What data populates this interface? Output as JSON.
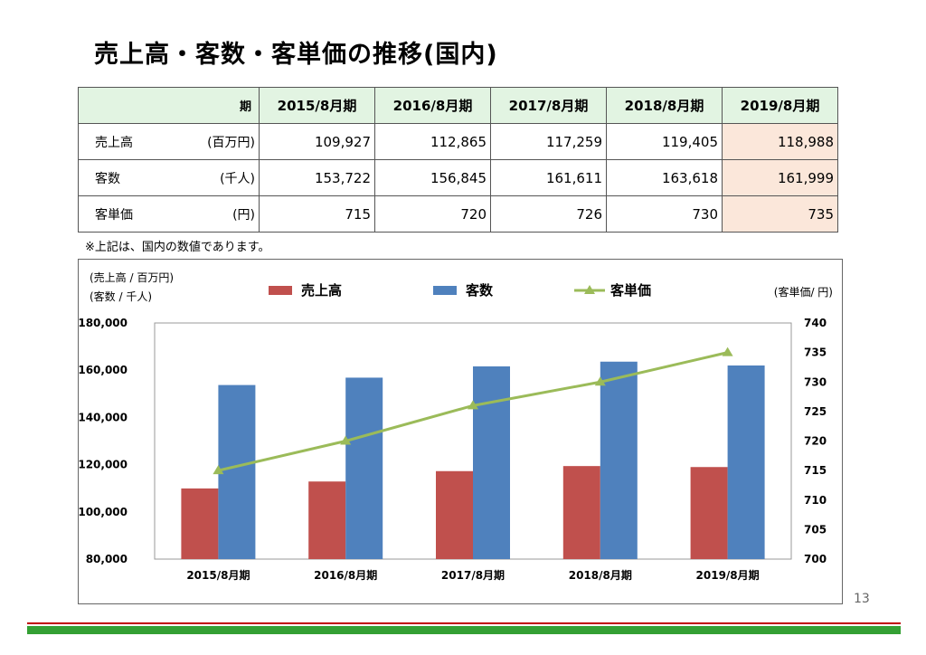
{
  "title": "売上高・客数・客単価の推移(国内)",
  "table": {
    "corner": "期",
    "columns": [
      "2015/8月期",
      "2016/8月期",
      "2017/8月期",
      "2018/8月期",
      "2019/8月期"
    ],
    "rows": [
      {
        "label": "売上高",
        "unit": "(百万円)",
        "values": [
          "109,927",
          "112,865",
          "117,259",
          "119,405",
          "118,988"
        ]
      },
      {
        "label": "客数",
        "unit": "(千人)",
        "values": [
          "153,722",
          "156,845",
          "161,611",
          "163,618",
          "161,999"
        ]
      },
      {
        "label": "客単価",
        "unit": "(円)",
        "values": [
          "715",
          "720",
          "726",
          "730",
          "735"
        ]
      }
    ]
  },
  "note": "※上記は、国内の数値であります。",
  "page_number": "13",
  "chart_data": {
    "type": "bar",
    "categories": [
      "2015/8月期",
      "2016/8月期",
      "2017/8月期",
      "2018/8月期",
      "2019/8月期"
    ],
    "series": [
      {
        "name": "売上高",
        "axis": "left",
        "type": "bar",
        "color": "#c0504d",
        "values": [
          109927,
          112865,
          117259,
          119405,
          118988
        ]
      },
      {
        "name": "客数",
        "axis": "left",
        "type": "bar",
        "color": "#4f81bd",
        "values": [
          153722,
          156845,
          161611,
          163618,
          161999
        ]
      },
      {
        "name": "客単価",
        "axis": "right",
        "type": "line",
        "color": "#9bbb59",
        "marker": "triangle",
        "values": [
          715,
          720,
          726,
          730,
          735
        ]
      }
    ],
    "left_axis": {
      "label_line1": "(売上高 / 百万円)",
      "label_line2": "(客数 / 千人)",
      "ylim": [
        80000,
        180000
      ],
      "ticks": [
        "80,000",
        "100,000",
        "120,000",
        "140,000",
        "160,000",
        "180,000"
      ]
    },
    "right_axis": {
      "label": "(客単価/ 円)",
      "ylim": [
        700,
        740
      ],
      "ticks": [
        "700",
        "705",
        "710",
        "715",
        "720",
        "725",
        "730",
        "735",
        "740"
      ]
    },
    "legend_position": "top",
    "grid": false
  }
}
